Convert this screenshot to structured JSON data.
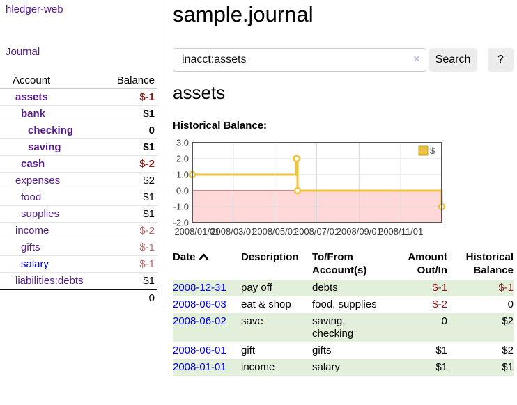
{
  "sidebar": {
    "brand": "hledger-web",
    "journal_link": "Journal",
    "accounts": {
      "headers": [
        "Account",
        "Balance"
      ],
      "rows": [
        {
          "name": "assets",
          "balance": "$-1"
        },
        {
          "name": "bank",
          "balance": "$1"
        },
        {
          "name": "checking",
          "balance": "0"
        },
        {
          "name": "saving",
          "balance": "$1"
        },
        {
          "name": "cash",
          "balance": "$-2"
        },
        {
          "name": "expenses",
          "balance": "$2"
        },
        {
          "name": "food",
          "balance": "$1"
        },
        {
          "name": "supplies",
          "balance": "$1"
        },
        {
          "name": "income",
          "balance": "$-2"
        },
        {
          "name": "gifts",
          "balance": "$-1"
        },
        {
          "name": "salary",
          "balance": "$-1"
        },
        {
          "name": "liabilities:debts",
          "balance": "$1"
        }
      ],
      "total": "0"
    }
  },
  "main": {
    "title": "sample.journal",
    "search": {
      "value": "inacct:assets",
      "clear_icon": "×",
      "search_button": "Search",
      "help_button": "?"
    },
    "account_heading": "assets",
    "chart_heading": "Historical Balance:",
    "register": {
      "headers": [
        "Date",
        "Description",
        "To/From Account(s)",
        "Amount Out/In",
        "Historical Balance"
      ],
      "rows": [
        {
          "date": "2008-12-31",
          "description": "pay off",
          "accounts": "debts",
          "amount": "$-1",
          "balance": "$-1"
        },
        {
          "date": "2008-06-03",
          "description": "eat & shop",
          "accounts": "food, supplies",
          "amount": "$-2",
          "balance": "0"
        },
        {
          "date": "2008-06-02",
          "description": "save",
          "accounts": "saving, checking",
          "amount": "0",
          "balance": "$2"
        },
        {
          "date": "2008-06-01",
          "description": "gift",
          "accounts": "gifts",
          "amount": "$1",
          "balance": "$2"
        },
        {
          "date": "2008-01-01",
          "description": "income",
          "accounts": "salary",
          "amount": "$1",
          "balance": "$1"
        }
      ]
    }
  },
  "colors": {
    "link_purple": "#551a8b",
    "link_blue": "#0000ee",
    "negative": "#87201f",
    "negative_dim": "#b36b6b",
    "row_stripe_green": "#e2efdb",
    "button_gray": "#ececec"
  },
  "chart_data": {
    "type": "line",
    "title": "Historical Balance",
    "steps": true,
    "series": [
      {
        "name": "$",
        "x": [
          "2008-01-01",
          "2008-06-01",
          "2008-06-02",
          "2008-06-03",
          "2008-12-31"
        ],
        "values": [
          1,
          2,
          2,
          0,
          -1
        ]
      }
    ],
    "xrange": [
      "2008-01-01",
      "2008-12-31"
    ],
    "ylim": [
      -2.0,
      3.0
    ],
    "yticks": [
      "3.0",
      "2.0",
      "1.0",
      "0.0",
      "-1.0",
      "-2.0"
    ],
    "xticks": [
      "2008/01/01",
      "2008/03/01",
      "2008/05/01",
      "2008/07/01",
      "2008/09/01",
      "2008/11/01"
    ],
    "legend": {
      "position": "top-right"
    },
    "series_color": "#edc240",
    "point_fill": "#ffffff",
    "negative_fill": "rgba(255,180,180,0.5)",
    "zero_line_color": "#8b1c1c",
    "grid_color": "#d9d9d9",
    "border_color": "#545454",
    "grid": true
  }
}
